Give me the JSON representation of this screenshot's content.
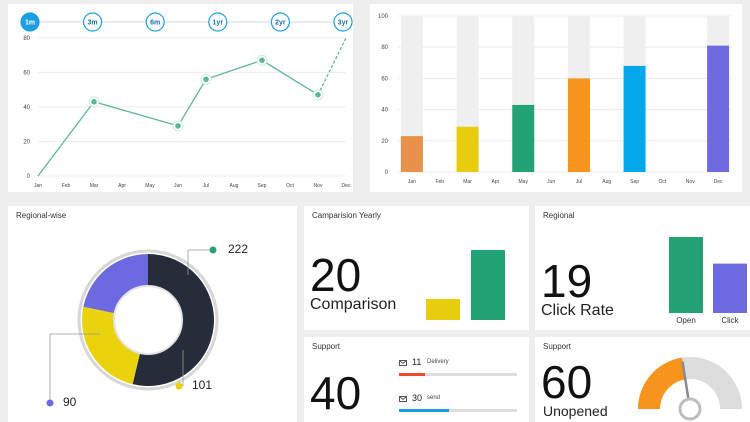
{
  "range_tabs": [
    "1m",
    "3m",
    "6m",
    "1yr",
    "2yr",
    "3yr"
  ],
  "range_active": 0,
  "chart_data": [
    {
      "type": "line",
      "categories": [
        "Jan",
        "Feb",
        "Mar",
        "Apr",
        "May",
        "Jun",
        "Jul",
        "Aug",
        "Sep",
        "Oct",
        "Nov",
        "Dec"
      ],
      "points": [
        {
          "m": "Jan",
          "v": 0
        },
        {
          "m": "Mar",
          "v": 43
        },
        {
          "m": "Jun",
          "v": 29
        },
        {
          "m": "Jul",
          "v": 56
        },
        {
          "m": "Sep",
          "v": 67
        },
        {
          "m": "Nov",
          "v": 47
        },
        {
          "m": "Dec",
          "v": 80,
          "projected": true
        }
      ],
      "yticks": [
        0,
        20,
        40,
        60,
        80
      ],
      "ylim": [
        0,
        88
      ],
      "color": "#5cb896",
      "grid": true
    },
    {
      "type": "bar",
      "categories": [
        "Jan",
        "Feb",
        "Mar",
        "Apr",
        "May",
        "Jun",
        "Jul",
        "Aug",
        "Sep",
        "Oct",
        "Nov",
        "Dec"
      ],
      "bars": [
        {
          "m": "Jan",
          "v": 23,
          "color": "#e8914a"
        },
        {
          "m": "Mar",
          "v": 29,
          "color": "#e8cc10"
        },
        {
          "m": "May",
          "v": 43,
          "color": "#23a274"
        },
        {
          "m": "Jul",
          "v": 60,
          "color": "#f7941d"
        },
        {
          "m": "Sep",
          "v": 68,
          "color": "#04a7e9"
        },
        {
          "m": "Dec",
          "v": 81,
          "color": "#6f6ae0"
        }
      ],
      "background_max": 100,
      "yticks": [
        0,
        20,
        40,
        60,
        80,
        100
      ],
      "ylim": [
        0,
        100
      ],
      "grid": true
    },
    {
      "type": "pie",
      "title": "Regional-wise",
      "donut": true,
      "slices": [
        {
          "label": "222",
          "value": 222,
          "color": "#262c3a"
        },
        {
          "label": "101",
          "value": 101,
          "color": "#ead20d"
        },
        {
          "label": "90",
          "value": 90,
          "color": "#6d6ae1"
        }
      ],
      "dot_colors": [
        "#23a274",
        "#ead20d",
        "#6d6ae1"
      ]
    },
    {
      "type": "bar",
      "title": "Camparision Yearly",
      "values": [
        30,
        100
      ],
      "colors": [
        "#e8cc10",
        "#23a274"
      ]
    },
    {
      "type": "bar",
      "title": "Regional",
      "categories": [
        "Open",
        "Click"
      ],
      "values": [
        100,
        65
      ],
      "colors": [
        "#23a274",
        "#6d6ae1"
      ]
    }
  ],
  "cards": {
    "comparison": {
      "title": "Camparision Yearly",
      "value": "20",
      "label": "Comparison"
    },
    "regional": {
      "title": "Regional",
      "value": "19",
      "label": "Click Rate"
    },
    "support1": {
      "title": "Support",
      "value": "40",
      "rows": [
        {
          "count": "11",
          "text": "Delivery",
          "progress": 0.22,
          "color": "#ee4a2e"
        },
        {
          "count": "30",
          "text": "send",
          "progress": 0.42,
          "color": "#1a9fe3"
        }
      ]
    },
    "support2": {
      "title": "Support",
      "value": "60",
      "label": "Unopened",
      "gauge": 0.45,
      "gauge_color": "#f7941d"
    }
  }
}
